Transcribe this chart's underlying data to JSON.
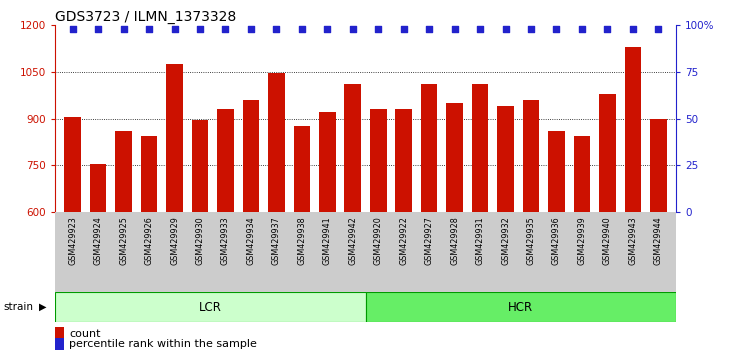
{
  "title": "GDS3723 / ILMN_1373328",
  "categories": [
    "GSM429923",
    "GSM429924",
    "GSM429925",
    "GSM429926",
    "GSM429929",
    "GSM429930",
    "GSM429933",
    "GSM429934",
    "GSM429937",
    "GSM429938",
    "GSM429941",
    "GSM429942",
    "GSM429920",
    "GSM429922",
    "GSM429927",
    "GSM429928",
    "GSM429931",
    "GSM429932",
    "GSM429935",
    "GSM429936",
    "GSM429939",
    "GSM429940",
    "GSM429943",
    "GSM429944"
  ],
  "bar_values": [
    905,
    755,
    860,
    845,
    1075,
    895,
    930,
    960,
    1045,
    875,
    920,
    1010,
    930,
    930,
    1010,
    950,
    1010,
    940,
    960,
    860,
    845,
    980,
    1130,
    900
  ],
  "lcr_count": 12,
  "hcr_count": 12,
  "ylim_left": [
    600,
    1200
  ],
  "ylim_right": [
    0,
    100
  ],
  "yticks_left": [
    600,
    750,
    900,
    1050,
    1200
  ],
  "yticks_right": [
    0,
    25,
    50,
    75,
    100
  ],
  "bar_color": "#cc1100",
  "dot_color": "#2222cc",
  "grid_color": "#000000",
  "lcr_color": "#ccffcc",
  "hcr_color": "#66ee66",
  "bg_tick_color": "#cccccc",
  "title_fontsize": 10,
  "axis_label_color_left": "#cc1100",
  "axis_label_color_right": "#2222cc",
  "lcr_label": "LCR",
  "hcr_label": "HCR",
  "legend_count_label": "count",
  "legend_pct_label": "percentile rank within the sample"
}
